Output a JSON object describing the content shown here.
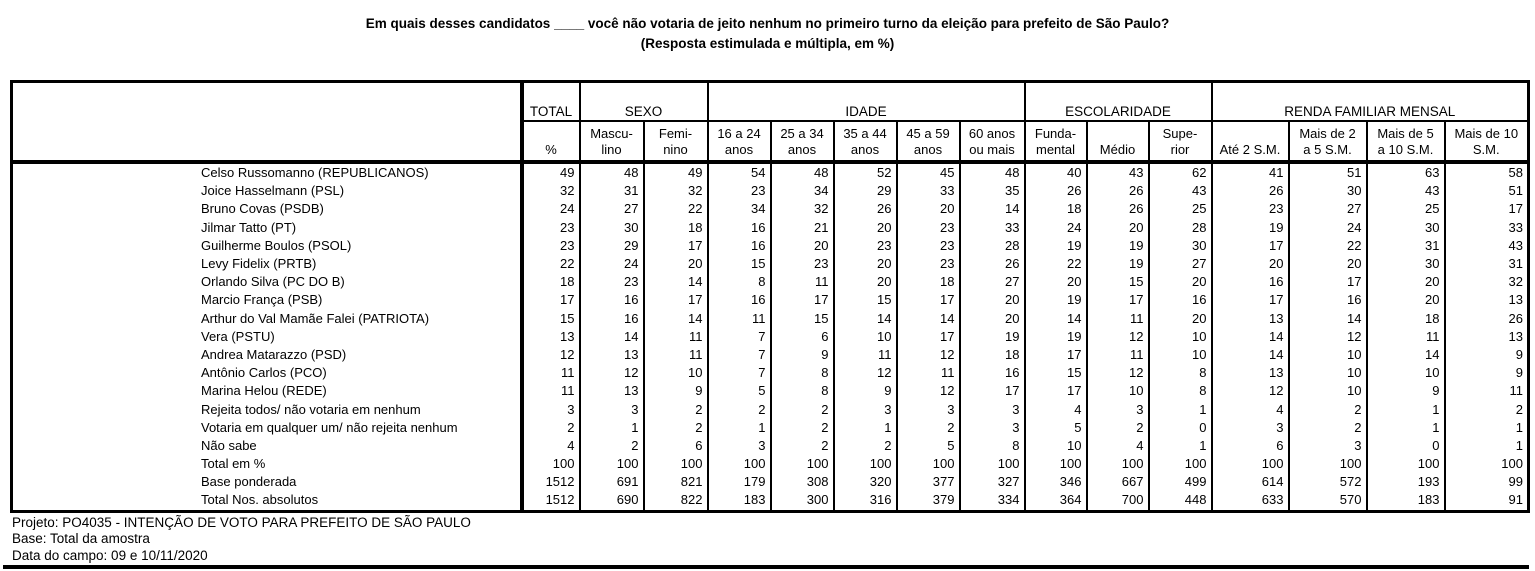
{
  "title": {
    "line1": "Em quais desses candidatos ____ você não votaria de jeito nenhum no primeiro turno da eleição para prefeito de São Paulo?",
    "line2": "(Resposta estimulada e múltipla, em %)"
  },
  "table": {
    "groups": [
      {
        "label": "TOTAL",
        "span": 1
      },
      {
        "label": "SEXO",
        "span": 2
      },
      {
        "label": "IDADE",
        "span": 5
      },
      {
        "label": "ESCOLARIDADE",
        "span": 3
      },
      {
        "label": "RENDA FAMILIAR MENSAL",
        "span": 4
      }
    ],
    "columns": [
      "%",
      "Mascu-\nlino",
      "Femi-\nnino",
      "16 a 24\nanos",
      "25 a 34\nanos",
      "35 a 44\nanos",
      "45 a 59\nanos",
      "60 anos\nou mais",
      "Funda-\nmental",
      "Médio",
      "Supe-\nrior",
      "Até 2 S.M.",
      "Mais de 2\na 5 S.M.",
      "Mais de 5\na 10 S.M.",
      "Mais de 10\nS.M."
    ],
    "rows": [
      {
        "label": "Celso Russomanno (REPUBLICANOS)",
        "values": [
          49,
          48,
          49,
          54,
          48,
          52,
          45,
          48,
          40,
          43,
          62,
          41,
          51,
          63,
          58
        ]
      },
      {
        "label": "Joice Hasselmann (PSL)",
        "values": [
          32,
          31,
          32,
          23,
          34,
          29,
          33,
          35,
          26,
          26,
          43,
          26,
          30,
          43,
          51
        ]
      },
      {
        "label": "Bruno Covas (PSDB)",
        "values": [
          24,
          27,
          22,
          34,
          32,
          26,
          20,
          14,
          18,
          26,
          25,
          23,
          27,
          25,
          17
        ]
      },
      {
        "label": "Jilmar Tatto (PT)",
        "values": [
          23,
          30,
          18,
          16,
          21,
          20,
          23,
          33,
          24,
          20,
          28,
          19,
          24,
          30,
          33
        ]
      },
      {
        "label": "Guilherme Boulos (PSOL)",
        "values": [
          23,
          29,
          17,
          16,
          20,
          23,
          23,
          28,
          19,
          19,
          30,
          17,
          22,
          31,
          43
        ]
      },
      {
        "label": "Levy Fidelix (PRTB)",
        "values": [
          22,
          24,
          20,
          15,
          23,
          20,
          23,
          26,
          22,
          19,
          27,
          20,
          20,
          30,
          31
        ]
      },
      {
        "label": "Orlando Silva (PC DO B)",
        "values": [
          18,
          23,
          14,
          8,
          11,
          20,
          18,
          27,
          20,
          15,
          20,
          16,
          17,
          20,
          32
        ]
      },
      {
        "label": "Marcio França (PSB)",
        "values": [
          17,
          16,
          17,
          16,
          17,
          15,
          17,
          20,
          19,
          17,
          16,
          17,
          16,
          20,
          13
        ]
      },
      {
        "label": "Arthur do Val Mamãe Falei (PATRIOTA)",
        "values": [
          15,
          16,
          14,
          11,
          15,
          14,
          14,
          20,
          14,
          11,
          20,
          13,
          14,
          18,
          26
        ]
      },
      {
        "label": "Vera (PSTU)",
        "values": [
          13,
          14,
          11,
          7,
          6,
          10,
          17,
          19,
          19,
          12,
          10,
          14,
          12,
          11,
          13
        ]
      },
      {
        "label": "Andrea Matarazzo (PSD)",
        "values": [
          12,
          13,
          11,
          7,
          9,
          11,
          12,
          18,
          17,
          11,
          10,
          14,
          10,
          14,
          9
        ]
      },
      {
        "label": "Antônio Carlos (PCO)",
        "values": [
          11,
          12,
          10,
          7,
          8,
          12,
          11,
          16,
          15,
          12,
          8,
          13,
          10,
          10,
          9
        ]
      },
      {
        "label": "Marina Helou (REDE)",
        "values": [
          11,
          13,
          9,
          5,
          8,
          9,
          12,
          17,
          17,
          10,
          8,
          12,
          10,
          9,
          11
        ]
      },
      {
        "label": "Rejeita todos/ não votaria em nenhum",
        "values": [
          3,
          3,
          2,
          2,
          2,
          3,
          3,
          3,
          4,
          3,
          1,
          4,
          2,
          1,
          2
        ]
      },
      {
        "label": "Votaria em qualquer um/ não rejeita nenhum",
        "values": [
          2,
          1,
          2,
          1,
          2,
          1,
          2,
          3,
          5,
          2,
          0,
          3,
          2,
          1,
          1
        ]
      },
      {
        "label": "Não sabe",
        "values": [
          4,
          2,
          6,
          3,
          2,
          2,
          5,
          8,
          10,
          4,
          1,
          6,
          3,
          0,
          1
        ]
      },
      {
        "label": "Total em %",
        "values": [
          100,
          100,
          100,
          100,
          100,
          100,
          100,
          100,
          100,
          100,
          100,
          100,
          100,
          100,
          100
        ]
      },
      {
        "label": "Base ponderada",
        "values": [
          1512,
          691,
          821,
          179,
          308,
          320,
          377,
          327,
          346,
          667,
          499,
          614,
          572,
          193,
          99
        ]
      },
      {
        "label": "Total Nos. absolutos",
        "values": [
          1512,
          690,
          822,
          183,
          300,
          316,
          379,
          334,
          364,
          700,
          448,
          633,
          570,
          183,
          91
        ]
      }
    ]
  },
  "footer": {
    "lines": [
      "Projeto: PO4035 - INTENÇÃO DE VOTO PARA PREFEITO DE SÃO PAULO",
      "Base: Total da amostra",
      "Data do campo: 09 e 10/11/2020"
    ]
  }
}
